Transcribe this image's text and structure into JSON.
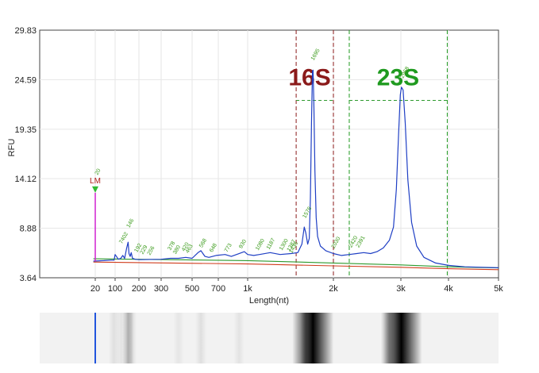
{
  "chart_data": {
    "type": "line",
    "title": "",
    "xlabel": "Length(nt)",
    "ylabel": "RFU",
    "x_scale": "piecewise-log",
    "x_tick_labels": [
      "20",
      "100",
      "200",
      "300",
      "500",
      "700",
      "1k",
      "2k",
      "3k",
      "4k",
      "5k"
    ],
    "x_tick_values": [
      20,
      100,
      200,
      300,
      500,
      700,
      1000,
      2000,
      3000,
      4000,
      5000
    ],
    "y_tick_labels": [
      "29.83",
      "24.59",
      "19.35",
      "14.12",
      "8.88",
      "3.64"
    ],
    "ylim": [
      3.64,
      29.83
    ],
    "grid": true,
    "series": [
      {
        "color": "#1f3fc4",
        "points": [
          [
            18,
            5.4
          ],
          [
            40,
            5.45
          ],
          [
            70,
            5.5
          ],
          [
            92,
            5.5
          ],
          [
            100,
            6.1
          ],
          [
            110,
            5.6
          ],
          [
            118,
            5.7
          ],
          [
            125,
            6.0
          ],
          [
            132,
            5.7
          ],
          [
            140,
            6.8
          ],
          [
            146,
            7.4
          ],
          [
            150,
            6.2
          ],
          [
            155,
            5.9
          ],
          [
            160,
            6.3
          ],
          [
            166,
            5.7
          ],
          [
            180,
            5.6
          ],
          [
            200,
            5.55
          ],
          [
            300,
            5.6
          ],
          [
            350,
            5.7
          ],
          [
            400,
            5.7
          ],
          [
            450,
            5.8
          ],
          [
            500,
            5.7
          ],
          [
            540,
            6.3
          ],
          [
            560,
            6.5
          ],
          [
            590,
            5.9
          ],
          [
            620,
            5.8
          ],
          [
            680,
            6.0
          ],
          [
            760,
            6.1
          ],
          [
            820,
            5.9
          ],
          [
            900,
            6.2
          ],
          [
            960,
            6.4
          ],
          [
            1000,
            6.1
          ],
          [
            1050,
            6.0
          ],
          [
            1100,
            6.1
          ],
          [
            1200,
            6.3
          ],
          [
            1300,
            6.1
          ],
          [
            1420,
            6.2
          ],
          [
            1500,
            6.3
          ],
          [
            1550,
            7.2
          ],
          [
            1580,
            9.0
          ],
          [
            1600,
            8.4
          ],
          [
            1625,
            7.2
          ],
          [
            1645,
            7.8
          ],
          [
            1660,
            12.0
          ],
          [
            1675,
            20.0
          ],
          [
            1688,
            25.5
          ],
          [
            1697,
            25.6
          ],
          [
            1708,
            22.0
          ],
          [
            1722,
            15.0
          ],
          [
            1740,
            10.0
          ],
          [
            1760,
            8.0
          ],
          [
            1800,
            7.0
          ],
          [
            1880,
            6.5
          ],
          [
            2000,
            6.2
          ],
          [
            2100,
            6.0
          ],
          [
            2200,
            6.1
          ],
          [
            2300,
            6.2
          ],
          [
            2400,
            6.3
          ],
          [
            2500,
            6.2
          ],
          [
            2600,
            6.4
          ],
          [
            2700,
            6.8
          ],
          [
            2800,
            7.6
          ],
          [
            2870,
            9.0
          ],
          [
            2920,
            13.0
          ],
          [
            2960,
            19.0
          ],
          [
            2990,
            23.0
          ],
          [
            3010,
            23.8
          ],
          [
            3040,
            23.5
          ],
          [
            3080,
            20.0
          ],
          [
            3130,
            14.0
          ],
          [
            3200,
            9.5
          ],
          [
            3300,
            7.0
          ],
          [
            3450,
            5.8
          ],
          [
            3700,
            5.2
          ],
          [
            4000,
            4.95
          ],
          [
            4300,
            4.8
          ],
          [
            5000,
            4.7
          ]
        ]
      },
      {
        "color": "#d03c1c",
        "points": [
          [
            18,
            5.3
          ],
          [
            1000,
            5.1
          ],
          [
            2000,
            4.9
          ],
          [
            3000,
            4.75
          ],
          [
            4000,
            4.6
          ],
          [
            5000,
            4.5
          ]
        ]
      },
      {
        "color": "#2d9a2d",
        "points": [
          [
            18,
            5.65
          ],
          [
            1000,
            5.45
          ],
          [
            2000,
            5.2
          ],
          [
            3000,
            5.0
          ],
          [
            4000,
            4.8
          ],
          [
            5000,
            4.68
          ]
        ]
      }
    ],
    "ladder_marker": {
      "label": "LM",
      "size_label": "20",
      "x": 20,
      "height": 13.3,
      "color": "#d020d0",
      "arrow_color": "#33bb33",
      "label_color": "#b0201a"
    },
    "peak_labels": [
      {
        "text": "7402",
        "x": 122,
        "y": 7.2
      },
      {
        "text": "146",
        "x": 151,
        "y": 8.9
      },
      {
        "text": "192",
        "x": 190,
        "y": 6.3
      },
      {
        "text": "229",
        "x": 215,
        "y": 6.1
      },
      {
        "text": "256",
        "x": 245,
        "y": 6.0
      },
      {
        "text": "378",
        "x": 350,
        "y": 6.5
      },
      {
        "text": "380",
        "x": 382,
        "y": 6.1
      },
      {
        "text": "420",
        "x": 440,
        "y": 6.4
      },
      {
        "text": "463",
        "x": 470,
        "y": 6.2
      },
      {
        "text": "568",
        "x": 568,
        "y": 6.8
      },
      {
        "text": "648",
        "x": 648,
        "y": 6.3
      },
      {
        "text": "773",
        "x": 780,
        "y": 6.3
      },
      {
        "text": "930",
        "x": 930,
        "y": 6.7
      },
      {
        "text": "1080",
        "x": 1090,
        "y": 6.5
      },
      {
        "text": "1187",
        "x": 1190,
        "y": 6.6
      },
      {
        "text": "1300",
        "x": 1320,
        "y": 6.5
      },
      {
        "text": "1387",
        "x": 1405,
        "y": 6.4
      },
      {
        "text": "1436",
        "x": 1430,
        "y": 6.2
      },
      {
        "text": "1576",
        "x": 1595,
        "y": 9.9
      },
      {
        "text": "1695",
        "x": 1705,
        "y": 26.6
      },
      {
        "text": "2030",
        "x": 2010,
        "y": 6.7
      },
      {
        "text": "2420",
        "x": 2230,
        "y": 6.8
      },
      {
        "text": "2391",
        "x": 2330,
        "y": 6.8
      },
      {
        "text": "2968",
        "x": 3040,
        "y": 24.7
      }
    ],
    "regions": [
      {
        "label": "16S",
        "color": "#8b1a1a",
        "x_start": 1480,
        "x_end": 2000,
        "label_x": 1650,
        "label_y": 24.0,
        "level_y": 22.4,
        "level_color": "#2d9a2d"
      },
      {
        "label": "23S",
        "color": "#1f9a1f",
        "x_start": 2200,
        "x_end": 3970,
        "label_x": 2950,
        "label_y": 24.0,
        "level_y": 22.4,
        "level_color": "#2d9a2d"
      }
    ]
  },
  "gel": {
    "marker_x": 20,
    "marker_color": "#2255dd",
    "bands": [
      {
        "x": 92,
        "intensity": 0.08
      },
      {
        "x": 120,
        "intensity": 0.06
      },
      {
        "x": 146,
        "intensity": 0.25
      },
      {
        "x": 160,
        "intensity": 0.1
      },
      {
        "x": 400,
        "intensity": 0.05
      },
      {
        "x": 560,
        "intensity": 0.08
      },
      {
        "x": 900,
        "intensity": 0.06
      },
      {
        "x": 1600,
        "intensity": 0.3
      },
      {
        "x": 1695,
        "intensity": 1.0
      },
      {
        "x": 2800,
        "intensity": 0.2
      },
      {
        "x": 3010,
        "intensity": 1.0
      }
    ]
  }
}
